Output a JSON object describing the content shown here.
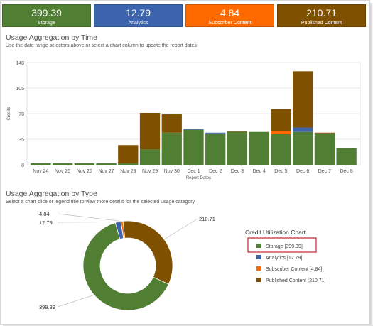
{
  "colors": {
    "storage": "#507e32",
    "analytics": "#3c64ad",
    "subscriber": "#ff6a00",
    "published": "#7f5000",
    "highlight": "#c0232a"
  },
  "summary_tiles": [
    {
      "value": "399.39",
      "label": "Storage"
    },
    {
      "value": "12.79",
      "label": "Analytics"
    },
    {
      "value": "4.84",
      "label": "Subscriber Content"
    },
    {
      "value": "210.71",
      "label": "Published Content"
    }
  ],
  "time_section": {
    "title": "Usage Aggregation by Time",
    "subtitle": "Use the date range selectors above or select a chart column to update the report dates"
  },
  "type_section": {
    "title": "Usage Aggregation by Type",
    "subtitle": "Select a chart slice or legend title to view more details for the selected usage category",
    "legend_title": "Credit Utilization Chart"
  },
  "chart_data": [
    {
      "type": "bar",
      "stacked": true,
      "xlabel": "Report Dates",
      "ylabel": "Credits",
      "ylim": [
        0,
        140
      ],
      "yticks": [
        0,
        35,
        70,
        105,
        140
      ],
      "grid": true,
      "categories": [
        "Nov 24",
        "Nov 25",
        "Nov 26",
        "Nov 27",
        "Nov 28",
        "Nov 29",
        "Nov 30",
        "Dec 1",
        "Dec 2",
        "Dec 3",
        "Dec 4",
        "Dec 5",
        "Dec 6",
        "Dec 7",
        "Dec 8"
      ],
      "series": [
        {
          "key": "storage",
          "values": [
            2,
            2,
            2,
            2,
            2,
            21,
            44,
            48,
            43,
            45,
            45,
            42,
            45,
            43,
            23
          ]
        },
        {
          "key": "analytics",
          "values": [
            0,
            0,
            0,
            0,
            0,
            0,
            0,
            1,
            1,
            0,
            0,
            0,
            6,
            0,
            0
          ]
        },
        {
          "key": "subscriber",
          "values": [
            0,
            0,
            0,
            0,
            0,
            0,
            0,
            0,
            0,
            0,
            0,
            4,
            0,
            0,
            0
          ]
        },
        {
          "key": "published",
          "values": [
            0,
            0,
            0,
            0,
            25,
            50,
            25,
            0,
            0,
            1,
            0,
            30,
            77,
            1,
            0
          ]
        }
      ]
    },
    {
      "type": "pie",
      "donut": true,
      "legend_position": "right",
      "slices": [
        {
          "name": "Storage",
          "value": 399.39,
          "label": "399.39",
          "legend": "Storage [399.39]",
          "key": "storage",
          "highlighted": true
        },
        {
          "name": "Analytics",
          "value": 12.79,
          "label": "12.79",
          "legend": "Analytics [12.79]",
          "key": "analytics",
          "highlighted": false
        },
        {
          "name": "Subscriber Content",
          "value": 4.84,
          "label": "4.84",
          "legend": "Subscriber Content [4.84]",
          "key": "subscriber",
          "highlighted": false
        },
        {
          "name": "Published Content",
          "value": 210.71,
          "label": "210.71",
          "legend": "Published Content [210.71]",
          "key": "published",
          "highlighted": false
        }
      ]
    }
  ]
}
